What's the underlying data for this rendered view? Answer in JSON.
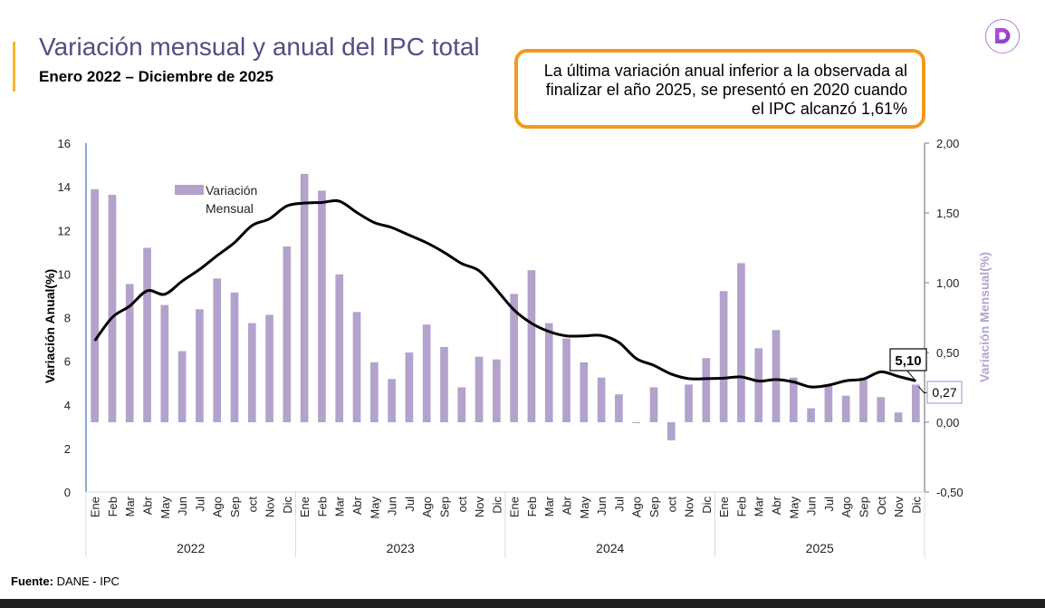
{
  "header": {
    "title": "Variación mensual y anual del IPC total",
    "subtitle": "Enero 2022 – Diciembre de 2025"
  },
  "callout": {
    "lines": [
      "La última variación anual inferior  a la observada al",
      "finalizar el año 2025, se presentó en 2020 cuando",
      "el IPC alcanzó 1,61%"
    ]
  },
  "logo": {
    "icon": "letter-d-logo-icon",
    "letter": "D"
  },
  "footer": {
    "source_label": "Fuente:",
    "source_value": " DANE - IPC"
  },
  "colors": {
    "bars": "#b3a2cb",
    "line": "#000000",
    "title": "#5a4a86",
    "callout_border": "#f29a1f",
    "accent": "#f2b632",
    "right_axis_title": "#b5a3cc"
  },
  "chart_data": {
    "type": "bar+line",
    "title": "Variación mensual y anual del IPC total",
    "subtitle": "Enero 2022 – Diciembre de 2025",
    "ylabel_left": "Variación Anual(%)",
    "ylabel_right": "Variación Mensual(%)",
    "ylim_left": [
      0,
      16
    ],
    "yticks_left": [
      "0",
      "2",
      "4",
      "6",
      "8",
      "10",
      "12",
      "14",
      "16"
    ],
    "ylim_right": [
      -0.5,
      2.0
    ],
    "yticks_right": [
      "-0,50",
      "0,00",
      "0,50",
      "1,00",
      "1,50",
      "2,00"
    ],
    "legend": {
      "entries": [
        "Variación Mensual"
      ],
      "placement": "top-left"
    },
    "years": [
      "2022",
      "2023",
      "2024",
      "2025"
    ],
    "months": [
      [
        "Ene",
        "Feb",
        "Mar",
        "Abr",
        "May",
        "Jun",
        "Jul",
        "Ago",
        "Sep",
        "oct",
        "Nov",
        "Dic"
      ],
      [
        "Ene",
        "Feb",
        "Mar",
        "Abr",
        "May",
        "Jun",
        "Jul",
        "Ago",
        "Sep",
        "oct",
        "Nov",
        "Dic"
      ],
      [
        "Ene",
        "Feb",
        "Mar",
        "Abr",
        "May",
        "Jun",
        "Jul",
        "Ago",
        "Sep",
        "oct",
        "Nov",
        "Dic"
      ],
      [
        "Ene",
        "Feb",
        "Mar",
        "Abr",
        "May",
        "Jun",
        "Jul",
        "Ago",
        "Sep",
        "Oct",
        "Nov",
        "Dic"
      ]
    ],
    "series": [
      {
        "name": "Variación Mensual",
        "type": "bar",
        "axis": "right",
        "values": [
          1.67,
          1.63,
          0.99,
          1.25,
          0.84,
          0.51,
          0.81,
          1.03,
          0.93,
          0.71,
          0.77,
          1.26,
          1.78,
          1.66,
          1.06,
          0.79,
          0.43,
          0.31,
          0.5,
          0.7,
          0.54,
          0.25,
          0.47,
          0.45,
          0.92,
          1.09,
          0.71,
          0.6,
          0.43,
          0.32,
          0.2,
          0.0,
          0.25,
          -0.13,
          0.27,
          0.46,
          0.94,
          1.14,
          0.53,
          0.66,
          0.32,
          0.1,
          0.27,
          0.19,
          0.32,
          0.18,
          0.07,
          0.27
        ]
      },
      {
        "name": "Variación Anual",
        "type": "line",
        "axis": "left",
        "values": [
          6.94,
          8.01,
          8.53,
          9.23,
          9.07,
          9.67,
          10.21,
          10.84,
          11.44,
          12.22,
          12.53,
          13.12,
          13.25,
          13.28,
          13.34,
          12.82,
          12.36,
          12.13,
          11.78,
          11.43,
          10.99,
          10.48,
          10.15,
          9.28,
          8.35,
          7.74,
          7.36,
          7.16,
          7.16,
          7.18,
          6.86,
          6.12,
          5.81,
          5.41,
          5.2,
          5.2,
          5.22,
          5.28,
          5.09,
          5.16,
          5.05,
          4.82,
          4.9,
          5.1,
          5.18,
          5.51,
          5.3,
          5.1
        ]
      }
    ],
    "annotations": [
      {
        "series": "Variación Anual",
        "point": "Dic 2025",
        "text": "5,10"
      },
      {
        "series": "Variación Mensual",
        "point": "Dic 2025",
        "text": "0,27"
      }
    ]
  }
}
